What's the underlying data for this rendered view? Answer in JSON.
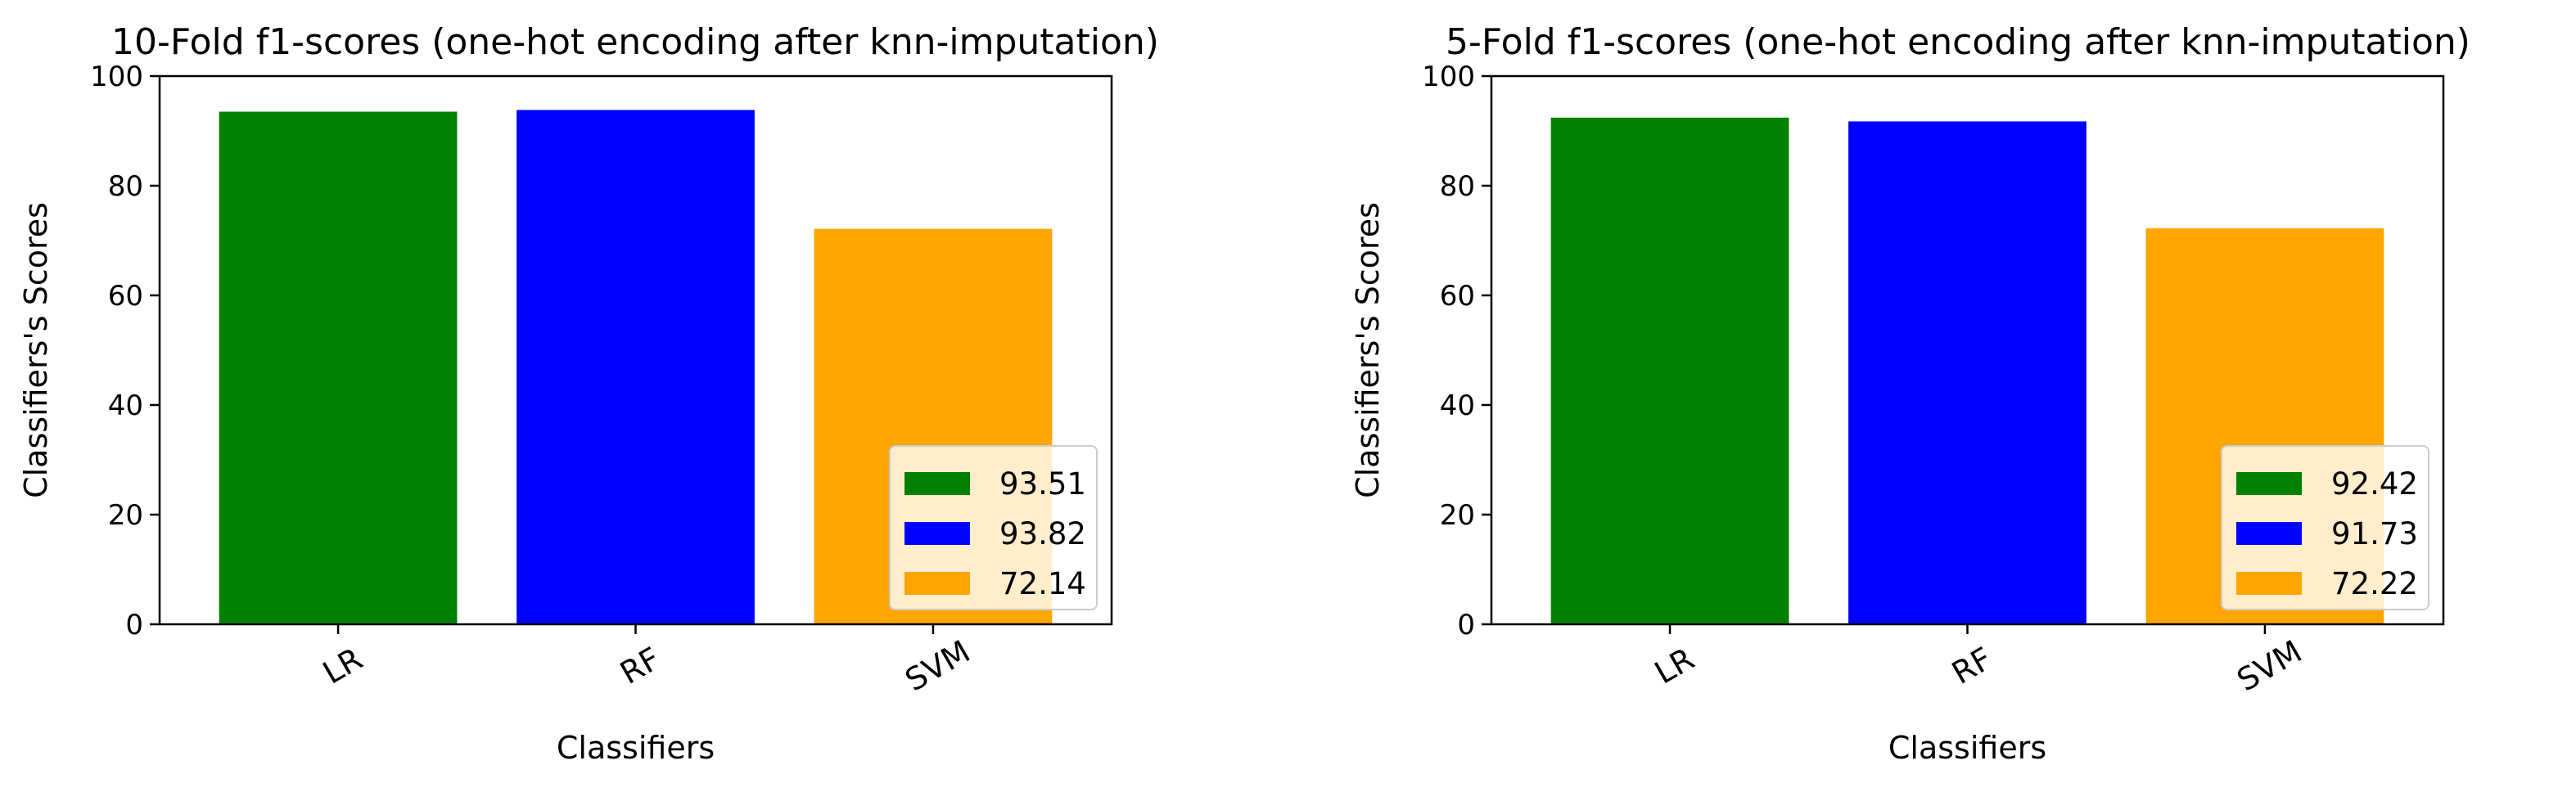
{
  "figure": {
    "background": "#ffffff"
  },
  "chart_data": [
    {
      "type": "bar",
      "title": "10-Fold f1-scores (one-hot encoding after knn-imputation)",
      "xlabel": "Classifiers",
      "ylabel": "Classifiers's Scores",
      "categories": [
        "LR",
        "RF",
        "SVM"
      ],
      "values": [
        93.51,
        93.82,
        72.14
      ],
      "colors": [
        "#008000",
        "#0000ff",
        "#ffa500"
      ],
      "ylim": [
        0,
        100
      ],
      "yticks": [
        0,
        20,
        40,
        60,
        80,
        100
      ],
      "xtick_rotation": "30 degrees",
      "grid": false,
      "legend": {
        "position": "lower right",
        "entries": [
          "93.51",
          "93.82",
          "72.14"
        ]
      }
    },
    {
      "type": "bar",
      "title": "5-Fold f1-scores (one-hot encoding after knn-imputation)",
      "xlabel": "Classifiers",
      "ylabel": "Classifiers's Scores",
      "categories": [
        "LR",
        "RF",
        "SVM"
      ],
      "values": [
        92.42,
        91.73,
        72.22
      ],
      "colors": [
        "#008000",
        "#0000ff",
        "#ffa500"
      ],
      "ylim": [
        0,
        100
      ],
      "yticks": [
        0,
        20,
        40,
        60,
        80,
        100
      ],
      "xtick_rotation": "30 degrees",
      "grid": false,
      "legend": {
        "position": "lower right",
        "entries": [
          "92.42",
          "91.73",
          "72.22"
        ]
      }
    }
  ]
}
